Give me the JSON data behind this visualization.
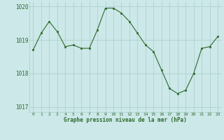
{
  "x": [
    0,
    1,
    2,
    3,
    4,
    5,
    6,
    7,
    8,
    9,
    10,
    11,
    12,
    13,
    14,
    15,
    16,
    17,
    18,
    19,
    20,
    21,
    22,
    23
  ],
  "y": [
    1018.7,
    1019.2,
    1019.55,
    1019.25,
    1018.8,
    1018.85,
    1018.75,
    1018.75,
    1019.3,
    1019.95,
    1019.95,
    1019.8,
    1019.55,
    1019.2,
    1018.85,
    1018.65,
    1018.1,
    1017.55,
    1017.4,
    1017.5,
    1018.0,
    1018.75,
    1018.8,
    1019.1
  ],
  "line_color": "#2d6a2d",
  "marker_color": "#2d6a2d",
  "bg_color": "#cce8e8",
  "grid_color": "#aacccc",
  "xlabel": "Graphe pression niveau de la mer (hPa)",
  "xlabel_color": "#2d6a2d",
  "tick_color": "#2d6a2d",
  "label_color": "#2d6a2d",
  "ylim": [
    1016.85,
    1020.15
  ],
  "yticks": [
    1017,
    1018,
    1019,
    1020
  ],
  "xlim": [
    -0.5,
    23.5
  ],
  "xticks": [
    0,
    1,
    2,
    3,
    4,
    5,
    6,
    7,
    8,
    9,
    10,
    11,
    12,
    13,
    14,
    15,
    16,
    17,
    18,
    19,
    20,
    21,
    22,
    23
  ]
}
